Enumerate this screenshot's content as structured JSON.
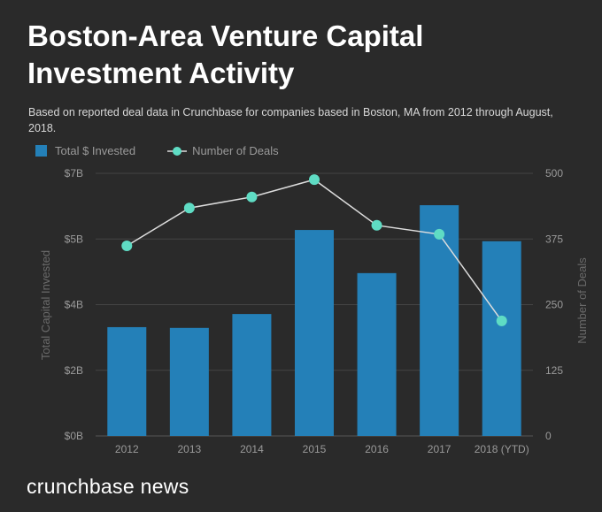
{
  "title": "Boston-Area Venture Capital Investment Activity",
  "subtitle": "Based on reported deal data in Crunchbase for companies based in Boston, MA from 2012 through August, 2018.",
  "logo": "crunchbase news",
  "colors": {
    "background": "#2a2a2a",
    "bars": "#2480b8",
    "dots": "#5fdcc4",
    "line": "#dddddd",
    "grid": "#444444",
    "text": "#9a9a9a"
  },
  "chart_data": {
    "type": "bar",
    "categories": [
      "2012",
      "2013",
      "2014",
      "2015",
      "2016",
      "2017",
      "2018 (YTD)"
    ],
    "series": [
      {
        "name": "Total $ Invested",
        "type": "bar",
        "axis": "left",
        "values": [
          2.9,
          2.88,
          3.25,
          5.49,
          4.34,
          6.15,
          5.19
        ]
      },
      {
        "name": "Number of Deals",
        "type": "line",
        "axis": "right",
        "values": [
          362,
          434,
          455,
          488,
          401,
          384,
          219
        ]
      }
    ],
    "ylabel": "Total Capital Invested",
    "ylabel_right": "Number of Deals",
    "ylim": [
      0,
      7
    ],
    "ylim_right": [
      0,
      500
    ],
    "yticks": [
      0,
      1.75,
      3.5,
      5.25,
      7
    ],
    "ytick_labels": [
      "$0B",
      "$2B",
      "$4B",
      "$5B",
      "$7B"
    ],
    "yticks_right": [
      0,
      125,
      250,
      375,
      500
    ],
    "ytick_labels_right": [
      "0",
      "125",
      "250",
      "375",
      "500"
    ],
    "grid": true,
    "legend": "top-left"
  }
}
